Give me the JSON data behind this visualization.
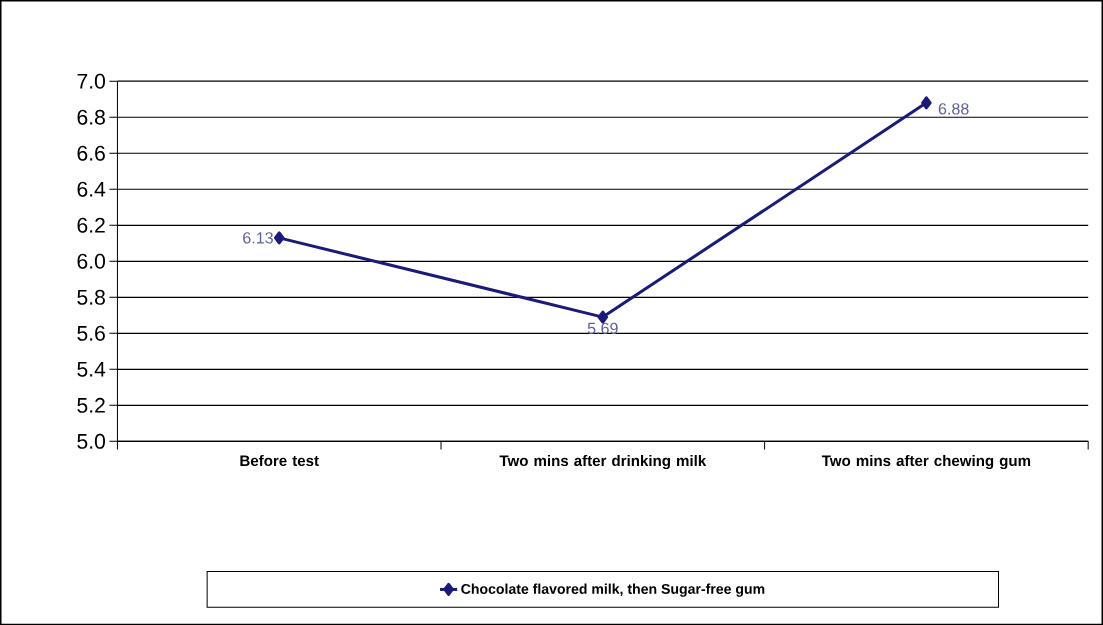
{
  "chart_data": {
    "type": "line",
    "categories": [
      "Before test",
      "Two mins after drinking milk",
      "Two mins after chewing gum"
    ],
    "series": [
      {
        "name": "Chocolate flavored milk, then Sugar-free gum",
        "color": "#1a1a7a",
        "values": [
          6.13,
          5.69,
          6.88
        ]
      }
    ],
    "ylim": [
      5.0,
      7.0
    ],
    "yticks": [
      {
        "value": 5.0,
        "label": "5.0"
      },
      {
        "value": 5.2,
        "label": "5.2"
      },
      {
        "value": 5.4,
        "label": "5.4"
      },
      {
        "value": 5.6,
        "label": "5.6"
      },
      {
        "value": 5.8,
        "label": "5.8"
      },
      {
        "value": 6.0,
        "label": "6.0"
      },
      {
        "value": 6.2,
        "label": "6.2"
      },
      {
        "value": 6.4,
        "label": "6.4"
      },
      {
        "value": 6.6,
        "label": "6.6"
      },
      {
        "value": 6.8,
        "label": "6.8"
      },
      {
        "value": 7.0,
        "label": "7.0"
      }
    ],
    "grid": "y",
    "legend": "bottom",
    "marker": "diamond",
    "line_style": "solid",
    "data_labels": true
  }
}
